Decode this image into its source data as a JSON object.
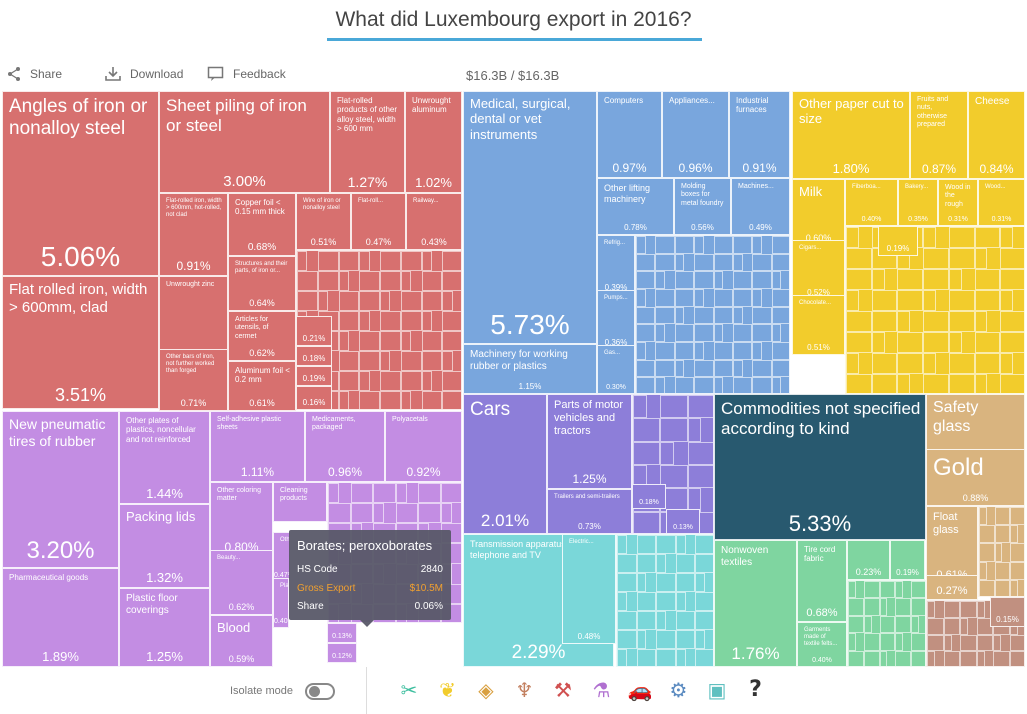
{
  "title": "What did Luxembourg export in 2016?",
  "toolbar": {
    "share": "Share",
    "download": "Download",
    "feedback": "Feedback",
    "total": "$16.3B / $16.3B"
  },
  "colors": {
    "metals": "#d7706f",
    "chemicals": "#c38de3",
    "machinery": "#79a6dd",
    "paper": "#f2cc2c",
    "transport": "#8d7ed9",
    "unspecified": "#28596f",
    "electronics": "#7ad7d9",
    "textiles": "#7fd5a0",
    "stone": "#d9b47f",
    "misc": "#c19080"
  },
  "cells": [
    {
      "name": "Angles of iron or nonalloy steel",
      "pct": "5.06%",
      "group": "metals"
    },
    {
      "name": "Flat rolled iron, width > 600mm, clad",
      "pct": "3.51%",
      "group": "metals"
    },
    {
      "name": "Sheet piling of iron or steel",
      "pct": "3.00%",
      "group": "metals"
    },
    {
      "name": "Flat-rolled products of other alloy steel, width > 600 mm",
      "pct": "1.27%",
      "group": "metals"
    },
    {
      "name": "Unwrought aluminum",
      "pct": "1.02%",
      "group": "metals"
    },
    {
      "name": "Flat-rolled iron, width > 600mm, hot-rolled, not clad",
      "pct": "0.91%",
      "group": "metals"
    },
    {
      "name": "Copper foil < 0.15 mm thick",
      "pct": "0.68%",
      "group": "metals"
    },
    {
      "name": "Wire of iron or nonalloy steel",
      "pct": "0.51%",
      "group": "metals"
    },
    {
      "name": "Flat-roll...",
      "pct": "0.47%",
      "group": "metals"
    },
    {
      "name": "Railway...",
      "pct": "0.43%",
      "group": "metals"
    },
    {
      "name": "Structures and their parts, of iron or...",
      "pct": "0.64%",
      "group": "metals"
    },
    {
      "name": "Unwrought zinc",
      "pct": "0.88%",
      "group": "metals"
    },
    {
      "name": "Articles for utensils, of cermet",
      "pct": "0.62%",
      "group": "metals"
    },
    {
      "name": "Other bars of iron, not further worked than forged",
      "pct": "0.71%",
      "group": "metals"
    },
    {
      "name": "Aluminum foil < 0.2 mm",
      "pct": "0.61%",
      "group": "metals"
    },
    {
      "name": "",
      "pct": "0.21%",
      "group": "metals"
    },
    {
      "name": "",
      "pct": "0.18%",
      "group": "metals"
    },
    {
      "name": "",
      "pct": "0.19%",
      "group": "metals"
    },
    {
      "name": "",
      "pct": "0.16%",
      "group": "metals"
    },
    {
      "name": "Medical, surgical, dental or vet instruments",
      "pct": "5.73%",
      "group": "machinery"
    },
    {
      "name": "Machinery for working rubber or plastics",
      "pct": "1.15%",
      "group": "machinery"
    },
    {
      "name": "Computers",
      "pct": "0.97%",
      "group": "machinery"
    },
    {
      "name": "Appliances...",
      "pct": "0.96%",
      "group": "machinery"
    },
    {
      "name": "Industrial furnaces",
      "pct": "0.91%",
      "group": "machinery"
    },
    {
      "name": "Other lifting machinery",
      "pct": "0.78%",
      "group": "machinery"
    },
    {
      "name": "Molding boxes for metal foundry",
      "pct": "0.56%",
      "group": "machinery"
    },
    {
      "name": "Machines...",
      "pct": "0.49%",
      "group": "machinery"
    },
    {
      "name": "Refrig...",
      "pct": "0.39%",
      "group": "machinery"
    },
    {
      "name": "Pumps...",
      "pct": "0.36%",
      "group": "machinery"
    },
    {
      "name": "Gas...",
      "pct": "0.30%",
      "group": "machinery"
    },
    {
      "name": "Other paper cut to size",
      "pct": "1.80%",
      "group": "paper"
    },
    {
      "name": "Fruits and nuts, otherwise prepared",
      "pct": "0.87%",
      "group": "paper"
    },
    {
      "name": "Cheese",
      "pct": "0.84%",
      "group": "paper"
    },
    {
      "name": "Milk",
      "pct": "0.60%",
      "group": "paper"
    },
    {
      "name": "Fiberboa...",
      "pct": "0.40%",
      "group": "paper"
    },
    {
      "name": "Bakery...",
      "pct": "0.35%",
      "group": "paper"
    },
    {
      "name": "Wood in the rough",
      "pct": "0.31%",
      "group": "paper"
    },
    {
      "name": "Wood...",
      "pct": "0.31%",
      "group": "paper"
    },
    {
      "name": "Cigars...",
      "pct": "0.52%",
      "group": "paper"
    },
    {
      "name": "",
      "pct": "0.19%",
      "group": "paper"
    },
    {
      "name": "Chocolate...",
      "pct": "0.51%",
      "group": "paper"
    },
    {
      "name": "New pneumatic tires of rubber",
      "pct": "3.20%",
      "group": "chemicals"
    },
    {
      "name": "Pharmaceutical goods",
      "pct": "1.89%",
      "group": "chemicals"
    },
    {
      "name": "Other plates of plastics, noncellular and not reinforced",
      "pct": "1.44%",
      "group": "chemicals"
    },
    {
      "name": "Packing lids",
      "pct": "1.32%",
      "group": "chemicals"
    },
    {
      "name": "Plastic floor coverings",
      "pct": "1.25%",
      "group": "chemicals"
    },
    {
      "name": "Self-adhesive plastic sheets",
      "pct": "1.11%",
      "group": "chemicals"
    },
    {
      "name": "Medicaments, packaged",
      "pct": "0.96%",
      "group": "chemicals"
    },
    {
      "name": "Polyacetals",
      "pct": "0.92%",
      "group": "chemicals"
    },
    {
      "name": "Other coloring matter",
      "pct": "0.80%",
      "group": "chemicals"
    },
    {
      "name": "Beauty...",
      "pct": "0.62%",
      "group": "chemicals"
    },
    {
      "name": "Blood",
      "pct": "0.59%",
      "group": "chemicals"
    },
    {
      "name": "Cleaning products",
      "pct": "",
      "group": "chemicals"
    },
    {
      "name": "Oth...",
      "pct": "0.47%",
      "group": "chemicals"
    },
    {
      "name": "Plas...",
      "pct": "0.40%",
      "group": "chemicals"
    },
    {
      "name": "",
      "pct": "0.13%",
      "group": "chemicals"
    },
    {
      "name": "",
      "pct": "0.12%",
      "group": "chemicals"
    },
    {
      "name": "Cars",
      "pct": "2.01%",
      "group": "transport"
    },
    {
      "name": "Parts of motor vehicles and tractors",
      "pct": "1.25%",
      "group": "transport"
    },
    {
      "name": "Trailers and semi-trailers",
      "pct": "0.73%",
      "group": "transport"
    },
    {
      "name": "",
      "pct": "0.18%",
      "group": "transport"
    },
    {
      "name": "",
      "pct": "0.13%",
      "group": "transport"
    },
    {
      "name": "Commodities not specified according to kind",
      "pct": "5.33%",
      "group": "unspecified"
    },
    {
      "name": "Transmission apparatus for radio, telephone and TV",
      "pct": "2.29%",
      "group": "electronics"
    },
    {
      "name": "Electric...",
      "pct": "0.48%",
      "group": "electronics"
    },
    {
      "name": "Nonwoven textiles",
      "pct": "1.76%",
      "group": "textiles"
    },
    {
      "name": "Tire cord fabric",
      "pct": "0.68%",
      "group": "textiles"
    },
    {
      "name": "Garments made of textile felts...",
      "pct": "0.40%",
      "group": "textiles"
    },
    {
      "name": "",
      "pct": "0.23%",
      "group": "textiles"
    },
    {
      "name": "",
      "pct": "0.19%",
      "group": "textiles"
    },
    {
      "name": "Safety glass",
      "pct": "0.98%",
      "group": "stone"
    },
    {
      "name": "Gold",
      "pct": "0.88%",
      "group": "stone"
    },
    {
      "name": "Float glass",
      "pct": "0.61%",
      "group": "stone"
    },
    {
      "name": "",
      "pct": "0.27%",
      "group": "stone"
    },
    {
      "name": "",
      "pct": "0.15%",
      "group": "misc"
    }
  ],
  "tooltip": {
    "title": "Borates; peroxoborates",
    "hs_label": "HS Code",
    "hs_value": "2840",
    "export_label": "Gross Export",
    "export_value": "$10.5M",
    "share_label": "Share",
    "share_value": "0.06%"
  },
  "footer": {
    "isolate_label": "Isolate mode",
    "icons": [
      "textiles-icon",
      "vegetable-icon",
      "stone-icon",
      "minerals-icon",
      "metals-icon",
      "chemicals-icon",
      "transport-icon",
      "machinery-icon",
      "electronics-icon",
      "unknown-icon"
    ]
  }
}
